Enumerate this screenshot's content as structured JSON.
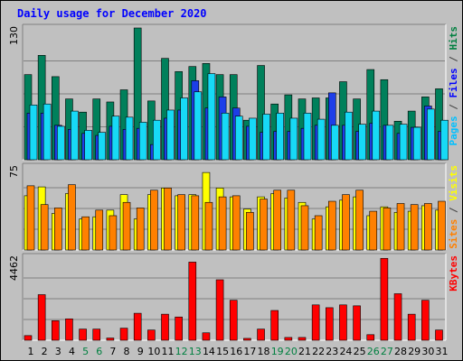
{
  "window": {
    "title": "Daily usage for December 2020",
    "background": "#c0c0c0"
  },
  "chart_data": {
    "type": "bar",
    "days": [
      "1",
      "2",
      "3",
      "4",
      "5",
      "6",
      "7",
      "8",
      "9",
      "10",
      "11",
      "12",
      "13",
      "14",
      "15",
      "16",
      "17",
      "18",
      "19",
      "20",
      "21",
      "22",
      "23",
      "24",
      "25",
      "26",
      "27",
      "28",
      "29",
      "30",
      "31"
    ],
    "weekend_days": [
      "5",
      "6",
      "12",
      "13",
      "19",
      "20",
      "26",
      "27"
    ],
    "weekend_color": "#008040",
    "panels": [
      {
        "id": "hits",
        "max_label": "130",
        "ymax": 130,
        "side_label": [
          {
            "text": "Pages",
            "color": "#00c0ff"
          },
          {
            "text": " / ",
            "color": "#404040"
          },
          {
            "text": "Files",
            "color": "#0000ff"
          },
          {
            "text": " / ",
            "color": "#404040"
          },
          {
            "text": "Hits",
            "color": "#008040"
          }
        ],
        "series": [
          {
            "name": "Hits",
            "color": "#00805b",
            "values": [
              84,
              103,
              82,
              60,
              47,
              60,
              57,
              69,
              130,
              58,
              100,
              87,
              92,
              95,
              84,
              84,
              39,
              93,
              55,
              64,
              60,
              61,
              61,
              77,
              60,
              89,
              79,
              38,
              48,
              62,
              70
            ]
          },
          {
            "name": "Files",
            "color": "#1d3ee8",
            "values": [
              46,
              46,
              34,
              30,
              26,
              24,
              33,
              30,
              31,
              15,
              41,
              49,
              78,
              51,
              62,
              51,
              33,
              27,
              28,
              28,
              31,
              34,
              66,
              34,
              28,
              36,
              34,
              26,
              32,
              53,
              28
            ]
          },
          {
            "name": "Pages",
            "color": "#17d9f6",
            "values": [
              54,
              55,
              33,
              48,
              29,
              27,
              43,
              42,
              37,
              39,
              49,
              61,
              67,
              85,
              46,
              43,
              41,
              45,
              46,
              41,
              46,
              40,
              34,
              47,
              35,
              48,
              34,
              35,
              32,
              50,
              39
            ]
          }
        ]
      },
      {
        "id": "visits",
        "max_label": "75",
        "ymax": 75,
        "side_label": [
          {
            "text": "Sites",
            "color": "#ff8000"
          },
          {
            "text": " / ",
            "color": "#404040"
          },
          {
            "text": "Visits",
            "color": "#ffff00"
          }
        ],
        "series": [
          {
            "name": "Visits",
            "color": "#ffff00",
            "values": [
              49,
              57,
              33,
              51,
              28,
              30,
              36,
              50,
              28,
              50,
              56,
              49,
              50,
              70,
              56,
              48,
              37,
              48,
              51,
              47,
              43,
              28,
              39,
              45,
              48,
              31,
              39,
              34,
              35,
              40,
              36
            ]
          },
          {
            "name": "Sites",
            "color": "#ff8000",
            "values": [
              58,
              41,
              38,
              59,
              30,
              36,
              31,
              43,
              38,
              54,
              56,
              50,
              49,
              43,
              48,
              49,
              34,
              46,
              54,
              54,
              40,
              31,
              44,
              50,
              54,
              35,
              38,
              42,
              41,
              42,
              44
            ]
          }
        ]
      },
      {
        "id": "kbytes",
        "max_label": "4462",
        "ymax": 4462,
        "side_label": [
          {
            "text": "KBytes",
            "color": "#ff0000"
          }
        ],
        "series": [
          {
            "name": "KBytes",
            "color": "#ff0000",
            "values": [
              250,
              2450,
              1050,
              1150,
              600,
              600,
              120,
              650,
              1450,
              550,
              1400,
              1250,
              4200,
              400,
              3250,
              2150,
              100,
              600,
              1600,
              150,
              150,
              1900,
              1750,
              1900,
              1850,
              300,
              4400,
              2500,
              1400,
              2150,
              550
            ]
          }
        ]
      }
    ]
  }
}
